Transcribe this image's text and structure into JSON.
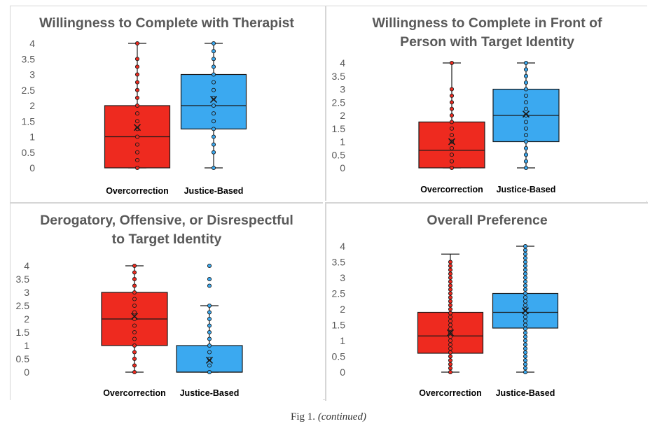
{
  "colors": {
    "overcorrection": "#ee2a1f",
    "justice_based": "#3ba9f0",
    "box_stroke": "#1a1a1a",
    "title": "#595959",
    "tick": "#595959",
    "category": "#000000"
  },
  "caption": {
    "prefix": "Fig 1.",
    "suffix": "(continued)"
  },
  "chart_data": [
    {
      "type": "box",
      "title": "Willingness to Complete with Therapist",
      "categories": [
        "Overcorrection",
        "Justice-Based"
      ],
      "ylim": [
        0,
        4
      ],
      "yticks": [
        "0",
        "0.5",
        "1",
        "1.5",
        "2",
        "2.5",
        "3",
        "3.5",
        "4"
      ],
      "series": [
        {
          "category": "Overcorrection",
          "min": 0,
          "q1": 0,
          "median": 1,
          "q3": 2,
          "max": 4,
          "mean": 1.3,
          "points": [
            0,
            0.25,
            0.5,
            0.75,
            1,
            1.25,
            1.5,
            1.75,
            2,
            2.25,
            2.5,
            2.75,
            3,
            3.25,
            3.5,
            4
          ]
        },
        {
          "category": "Justice-Based",
          "min": 0,
          "q1": 1.25,
          "median": 2,
          "q3": 3,
          "max": 4,
          "mean": 2.2,
          "points": [
            0,
            0.5,
            0.75,
            1,
            1.25,
            1.5,
            1.75,
            2,
            2.25,
            2.5,
            2.75,
            3,
            3.25,
            3.5,
            3.75,
            4
          ]
        }
      ]
    },
    {
      "type": "box",
      "title": "Willingness to Complete in Front of Person with Target Identity",
      "categories": [
        "Overcorrection",
        "Justice-Based"
      ],
      "ylim": [
        0,
        4
      ],
      "yticks": [
        "0",
        "0.5",
        "1",
        "1.5",
        "2",
        "2.5",
        "3",
        "3.5",
        "4"
      ],
      "series": [
        {
          "category": "Overcorrection",
          "min": 0,
          "q1": 0,
          "median": 0.67,
          "q3": 1.75,
          "max": 4,
          "mean": 1,
          "points": [
            0,
            0.25,
            0.5,
            0.75,
            1,
            1.25,
            1.5,
            1.75,
            2,
            2.25,
            2.5,
            2.75,
            3,
            4
          ]
        },
        {
          "category": "Justice-Based",
          "min": 0,
          "q1": 1,
          "median": 2,
          "q3": 3,
          "max": 4,
          "mean": 2.05,
          "points": [
            0,
            0.25,
            0.5,
            0.75,
            1,
            1.25,
            1.5,
            1.75,
            2,
            2.25,
            2.5,
            2.75,
            3,
            3.25,
            3.5,
            3.75,
            4
          ]
        }
      ]
    },
    {
      "type": "box",
      "title": "Derogatory, Offensive, or Disrespectful to Target Identity",
      "categories": [
        "Overcorrection",
        "Justice-Based"
      ],
      "ylim": [
        0,
        4
      ],
      "yticks": [
        "0",
        "0.5",
        "1",
        "1.5",
        "2",
        "2.5",
        "3",
        "3.5",
        "4"
      ],
      "series": [
        {
          "category": "Overcorrection",
          "min": 0,
          "q1": 1,
          "median": 2,
          "q3": 3,
          "max": 4,
          "mean": 2.1,
          "points": [
            0,
            0.25,
            0.5,
            0.75,
            1,
            1.25,
            1.5,
            1.75,
            2,
            2.25,
            2.5,
            2.75,
            3,
            3.25,
            3.5,
            3.75,
            4
          ]
        },
        {
          "category": "Justice-Based",
          "min": 0,
          "q1": 0,
          "median": 0,
          "q3": 1,
          "max": 2.5,
          "mean": 0.45,
          "points": [
            0,
            0.25,
            0.5,
            0.75,
            1,
            1.25,
            1.5,
            1.75,
            2,
            2.25,
            2.5,
            3.25,
            3.5,
            4
          ]
        }
      ]
    },
    {
      "type": "box",
      "title": "Overall Preference",
      "categories": [
        "Overcorrection",
        "Justice-Based"
      ],
      "ylim": [
        0,
        4
      ],
      "yticks": [
        "0",
        "0.5",
        "1",
        "1.5",
        "2",
        "2.5",
        "3",
        "3.5",
        "4"
      ],
      "series": [
        {
          "category": "Overcorrection",
          "min": 0,
          "q1": 0.6,
          "median": 1.15,
          "q3": 1.9,
          "max": 3.75,
          "mean": 1.25,
          "points": [
            0,
            0.125,
            0.25,
            0.375,
            0.5,
            0.625,
            0.75,
            0.875,
            1,
            1.125,
            1.25,
            1.375,
            1.5,
            1.625,
            1.75,
            1.875,
            2,
            2.125,
            2.25,
            2.375,
            2.5,
            2.625,
            2.75,
            2.875,
            3,
            3.125,
            3.25,
            3.375,
            3.5
          ]
        },
        {
          "category": "Justice-Based",
          "min": 0,
          "q1": 1.4,
          "median": 1.9,
          "q3": 2.5,
          "max": 4,
          "mean": 1.95,
          "points": [
            0,
            0.125,
            0.25,
            0.375,
            0.5,
            0.625,
            0.75,
            0.875,
            1,
            1.125,
            1.25,
            1.375,
            1.5,
            1.625,
            1.75,
            1.875,
            2,
            2.125,
            2.25,
            2.375,
            2.5,
            2.625,
            2.75,
            2.875,
            3,
            3.125,
            3.25,
            3.375,
            3.5,
            3.625,
            3.75,
            3.875,
            4
          ]
        }
      ]
    }
  ]
}
